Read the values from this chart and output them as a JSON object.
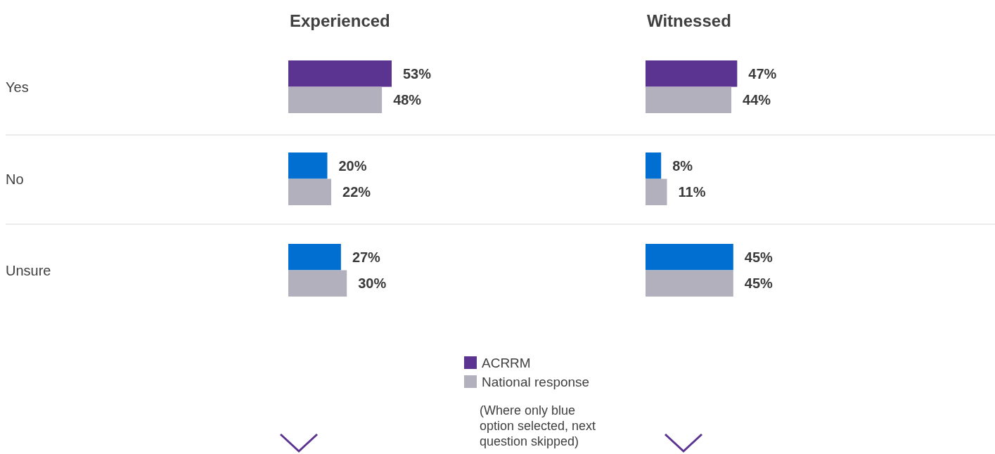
{
  "chart_data": [
    {
      "type": "bar",
      "orientation": "horizontal",
      "title": "Experienced",
      "categories": [
        "Yes",
        "No",
        "Unsure"
      ],
      "series": [
        {
          "name": "ACRRM",
          "color": "#5b3391",
          "colors": [
            "#5b3391",
            "#006fd1",
            "#006fd1"
          ],
          "values": [
            53,
            20,
            27
          ],
          "value_labels": [
            "53%",
            "20%",
            "27%"
          ]
        },
        {
          "name": "National response",
          "color": "#b1b0bc",
          "values": [
            48,
            22,
            30
          ],
          "value_labels": [
            "48%",
            "22%",
            "30%"
          ]
        }
      ],
      "legend": "bottom",
      "annotations": [
        "(Where only blue option selected, next question skipped)"
      ]
    },
    {
      "type": "bar",
      "orientation": "horizontal",
      "title": "Witnessed",
      "categories": [
        null,
        null,
        null
      ],
      "series": [
        {
          "colors": [
            "#5b3391",
            "#006fd1",
            "#006fd1"
          ],
          "values": [
            47,
            8,
            45
          ],
          "value_labels": [
            "47%",
            "8%",
            "45%"
          ]
        },
        {
          "color": "#b1b0bc",
          "values": [
            44,
            11,
            45
          ],
          "value_labels": [
            "44%",
            "11%",
            "45%"
          ]
        }
      ]
    }
  ]
}
